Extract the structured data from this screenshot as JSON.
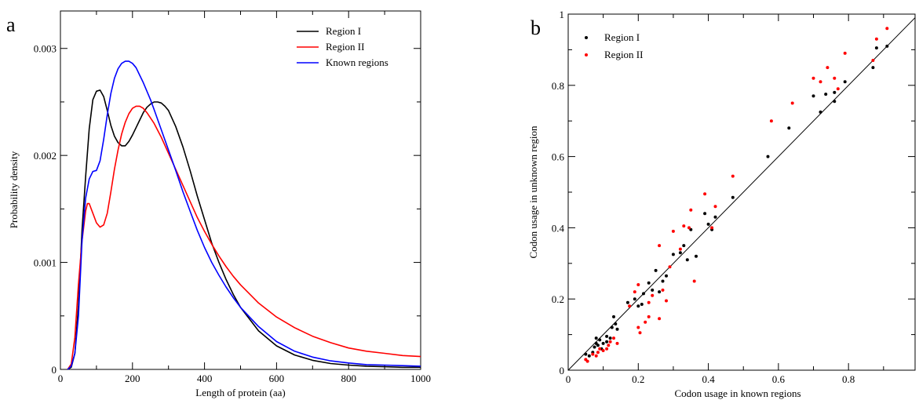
{
  "chart_data": [
    {
      "type": "line",
      "panel_label": "a",
      "xlabel": "Length of protein (aa)",
      "ylabel": "Probability density",
      "xlim": [
        0,
        1000
      ],
      "ylim": [
        0,
        0.00335
      ],
      "xticks": [
        {
          "v": 0,
          "label": "0"
        },
        {
          "v": 200,
          "label": "200"
        },
        {
          "v": 400,
          "label": "400"
        },
        {
          "v": 600,
          "label": "600"
        },
        {
          "v": 800,
          "label": "800"
        },
        {
          "v": 1000,
          "label": "1000"
        }
      ],
      "yticks": [
        {
          "v": 0,
          "label": "0"
        },
        {
          "v": 0.001,
          "label": "0.001"
        },
        {
          "v": 0.002,
          "label": "0.002"
        },
        {
          "v": 0.003,
          "label": "0.003"
        }
      ],
      "legend_position": "top-right",
      "grid": false,
      "series": [
        {
          "name": "Region I",
          "color": "#000000",
          "x": [
            20,
            30,
            40,
            50,
            60,
            70,
            80,
            90,
            100,
            110,
            120,
            130,
            140,
            150,
            160,
            170,
            180,
            190,
            200,
            210,
            220,
            230,
            240,
            250,
            260,
            270,
            280,
            290,
            300,
            320,
            340,
            360,
            380,
            400,
            420,
            440,
            460,
            480,
            500,
            550,
            600,
            650,
            700,
            750,
            800,
            850,
            900,
            950,
            1000
          ],
          "y": [
            0,
            2e-05,
            0.00015,
            0.0006,
            0.0013,
            0.0018,
            0.00225,
            0.00252,
            0.0026,
            0.00261,
            0.00255,
            0.00242,
            0.00228,
            0.00218,
            0.00212,
            0.00209,
            0.00209,
            0.00213,
            0.00219,
            0.00226,
            0.00233,
            0.0024,
            0.00245,
            0.00248,
            0.0025,
            0.0025,
            0.00249,
            0.00246,
            0.00242,
            0.00227,
            0.00208,
            0.00186,
            0.00162,
            0.0014,
            0.00118,
            0.001,
            0.00084,
            0.0007,
            0.00058,
            0.00036,
            0.00022,
            0.000135,
            8.5e-05,
            5.5e-05,
            4e-05,
            3e-05,
            2.5e-05,
            2e-05,
            2e-05
          ]
        },
        {
          "name": "Region II",
          "color": "#ff0000",
          "x": [
            20,
            30,
            40,
            50,
            60,
            70,
            75,
            80,
            90,
            100,
            110,
            120,
            130,
            140,
            150,
            160,
            170,
            180,
            190,
            200,
            210,
            220,
            230,
            240,
            260,
            280,
            300,
            320,
            340,
            360,
            380,
            400,
            420,
            440,
            460,
            480,
            500,
            550,
            600,
            650,
            700,
            750,
            800,
            850,
            900,
            950,
            1000
          ],
          "y": [
            0,
            5e-05,
            0.0003,
            0.0008,
            0.0012,
            0.00148,
            0.00155,
            0.00155,
            0.00146,
            0.00137,
            0.00133,
            0.00135,
            0.00146,
            0.00166,
            0.00187,
            0.00205,
            0.0022,
            0.00231,
            0.00239,
            0.00244,
            0.00246,
            0.00246,
            0.00244,
            0.0024,
            0.0023,
            0.00217,
            0.00202,
            0.00187,
            0.00172,
            0.00157,
            0.00142,
            0.00129,
            0.00117,
            0.00106,
            0.00096,
            0.00087,
            0.00079,
            0.00062,
            0.00049,
            0.00039,
            0.00031,
            0.00025,
            0.0002,
            0.00017,
            0.00015,
            0.00013,
            0.00012
          ]
        },
        {
          "name": "Known regions",
          "color": "#0000ff",
          "x": [
            20,
            30,
            40,
            50,
            60,
            70,
            80,
            90,
            100,
            110,
            120,
            130,
            140,
            150,
            160,
            170,
            180,
            190,
            200,
            210,
            220,
            230,
            240,
            250,
            260,
            280,
            300,
            320,
            340,
            360,
            380,
            400,
            420,
            440,
            460,
            480,
            500,
            550,
            600,
            650,
            700,
            750,
            800,
            850,
            900,
            950,
            1000
          ],
          "y": [
            0,
            3e-05,
            0.00015,
            0.0005,
            0.0012,
            0.0016,
            0.00178,
            0.00185,
            0.00186,
            0.00195,
            0.00215,
            0.00238,
            0.00258,
            0.00272,
            0.00281,
            0.00286,
            0.00288,
            0.00288,
            0.00286,
            0.00282,
            0.00275,
            0.00268,
            0.0026,
            0.00252,
            0.00243,
            0.00224,
            0.00205,
            0.00186,
            0.00166,
            0.00148,
            0.0013,
            0.00114,
            0.001,
            0.00088,
            0.00077,
            0.00067,
            0.00058,
            0.0004,
            0.00026,
            0.00017,
            0.000115,
            8e-05,
            6e-05,
            4.5e-05,
            4e-05,
            3.5e-05,
            3e-05
          ]
        }
      ]
    },
    {
      "type": "scatter",
      "panel_label": "b",
      "xlabel": "Codon usage in known regions",
      "ylabel": "Codon usage in unknown region",
      "xlim": [
        0,
        0.99
      ],
      "ylim": [
        0,
        1
      ],
      "xticks": [
        {
          "v": 0,
          "label": "0"
        },
        {
          "v": 0.2,
          "label": "0.2"
        },
        {
          "v": 0.4,
          "label": "0.4"
        },
        {
          "v": 0.6,
          "label": "0.6"
        },
        {
          "v": 0.8,
          "label": "0.8"
        }
      ],
      "yticks": [
        {
          "v": 0,
          "label": "0"
        },
        {
          "v": 0.2,
          "label": "0.2"
        },
        {
          "v": 0.4,
          "label": "0.4"
        },
        {
          "v": 0.6,
          "label": "0.6"
        },
        {
          "v": 0.8,
          "label": "0.8"
        },
        {
          "v": 1,
          "label": "1"
        }
      ],
      "reference_line": {
        "x": [
          0,
          0.99
        ],
        "y": [
          0,
          0.99
        ],
        "color": "#000000"
      },
      "legend_position": "top-left",
      "grid": false,
      "series": [
        {
          "name": "Region I",
          "color": "#000000",
          "points": [
            [
              0.05,
              0.045
            ],
            [
              0.06,
              0.04
            ],
            [
              0.07,
              0.05
            ],
            [
              0.075,
              0.065
            ],
            [
              0.08,
              0.075
            ],
            [
              0.08,
              0.09
            ],
            [
              0.085,
              0.07
            ],
            [
              0.09,
              0.085
            ],
            [
              0.095,
              0.06
            ],
            [
              0.1,
              0.075
            ],
            [
              0.11,
              0.08
            ],
            [
              0.11,
              0.095
            ],
            [
              0.12,
              0.09
            ],
            [
              0.125,
              0.12
            ],
            [
              0.13,
              0.15
            ],
            [
              0.135,
              0.13
            ],
            [
              0.14,
              0.115
            ],
            [
              0.17,
              0.19
            ],
            [
              0.19,
              0.2
            ],
            [
              0.2,
              0.18
            ],
            [
              0.21,
              0.185
            ],
            [
              0.215,
              0.215
            ],
            [
              0.23,
              0.245
            ],
            [
              0.24,
              0.225
            ],
            [
              0.25,
              0.28
            ],
            [
              0.26,
              0.22
            ],
            [
              0.27,
              0.25
            ],
            [
              0.28,
              0.265
            ],
            [
              0.3,
              0.325
            ],
            [
              0.32,
              0.33
            ],
            [
              0.33,
              0.35
            ],
            [
              0.34,
              0.31
            ],
            [
              0.35,
              0.395
            ],
            [
              0.365,
              0.32
            ],
            [
              0.39,
              0.44
            ],
            [
              0.4,
              0.41
            ],
            [
              0.41,
              0.395
            ],
            [
              0.42,
              0.43
            ],
            [
              0.47,
              0.485
            ],
            [
              0.57,
              0.6
            ],
            [
              0.63,
              0.68
            ],
            [
              0.7,
              0.77
            ],
            [
              0.72,
              0.725
            ],
            [
              0.735,
              0.775
            ],
            [
              0.76,
              0.755
            ],
            [
              0.76,
              0.78
            ],
            [
              0.79,
              0.81
            ],
            [
              0.87,
              0.85
            ],
            [
              0.88,
              0.905
            ],
            [
              0.91,
              0.91
            ]
          ]
        },
        {
          "name": "Region II",
          "color": "#ff0000",
          "points": [
            [
              0.05,
              0.03
            ],
            [
              0.055,
              0.025
            ],
            [
              0.07,
              0.045
            ],
            [
              0.08,
              0.04
            ],
            [
              0.085,
              0.05
            ],
            [
              0.09,
              0.06
            ],
            [
              0.1,
              0.055
            ],
            [
              0.11,
              0.06
            ],
            [
              0.115,
              0.07
            ],
            [
              0.12,
              0.08
            ],
            [
              0.13,
              0.09
            ],
            [
              0.14,
              0.075
            ],
            [
              0.175,
              0.18
            ],
            [
              0.19,
              0.22
            ],
            [
              0.2,
              0.24
            ],
            [
              0.2,
              0.12
            ],
            [
              0.205,
              0.105
            ],
            [
              0.22,
              0.135
            ],
            [
              0.23,
              0.15
            ],
            [
              0.23,
              0.19
            ],
            [
              0.24,
              0.21
            ],
            [
              0.26,
              0.35
            ],
            [
              0.26,
              0.145
            ],
            [
              0.27,
              0.225
            ],
            [
              0.28,
              0.195
            ],
            [
              0.29,
              0.29
            ],
            [
              0.3,
              0.39
            ],
            [
              0.32,
              0.34
            ],
            [
              0.33,
              0.405
            ],
            [
              0.345,
              0.4
            ],
            [
              0.35,
              0.45
            ],
            [
              0.36,
              0.25
            ],
            [
              0.39,
              0.495
            ],
            [
              0.41,
              0.4
            ],
            [
              0.42,
              0.46
            ],
            [
              0.47,
              0.545
            ],
            [
              0.58,
              0.7
            ],
            [
              0.64,
              0.75
            ],
            [
              0.7,
              0.82
            ],
            [
              0.72,
              0.81
            ],
            [
              0.74,
              0.85
            ],
            [
              0.76,
              0.82
            ],
            [
              0.77,
              0.79
            ],
            [
              0.79,
              0.89
            ],
            [
              0.87,
              0.87
            ],
            [
              0.88,
              0.93
            ],
            [
              0.91,
              0.96
            ]
          ]
        }
      ]
    }
  ]
}
